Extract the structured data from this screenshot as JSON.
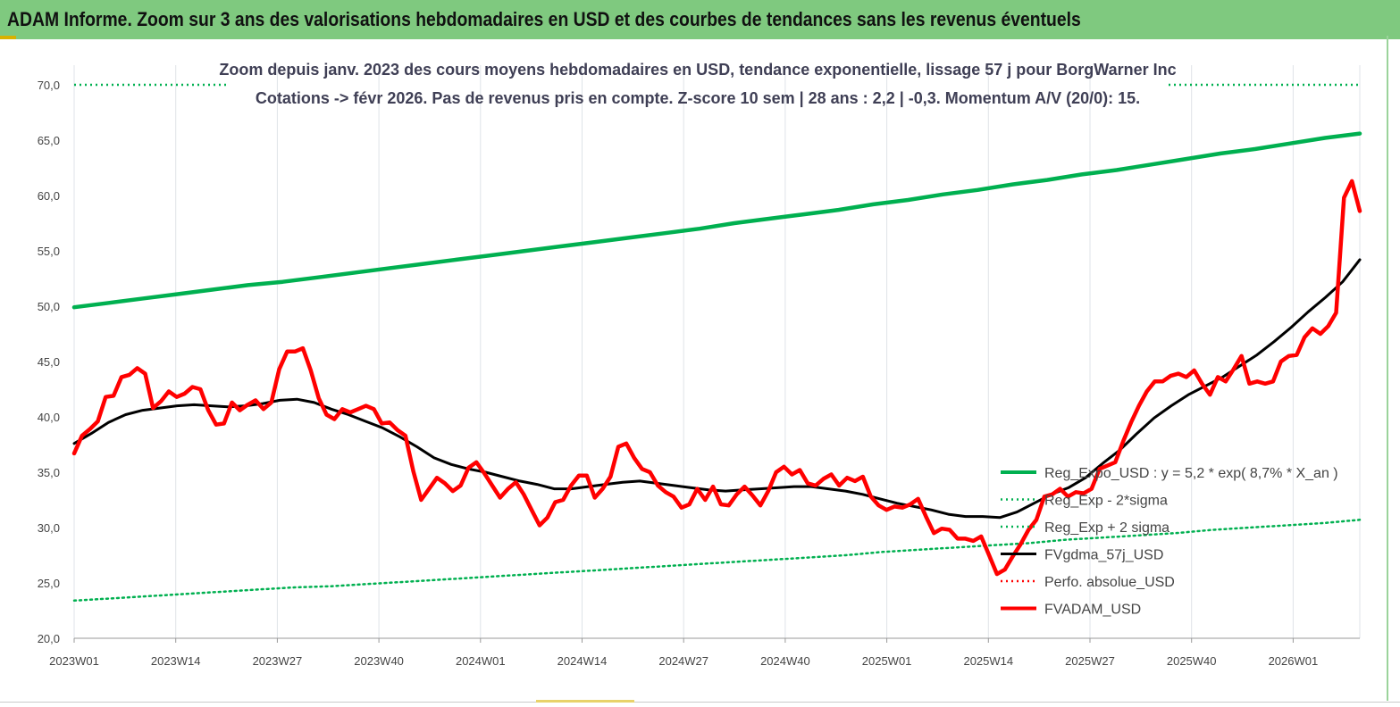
{
  "banner": {
    "title": "ADAM Informe. Zoom sur 3 ans des valorisations hebdomadaires en USD et des courbes de tendances sans les revenus éventuels"
  },
  "colors": {
    "banner_bg": "#7fc97f",
    "reg_expo": "#00b050",
    "fvgdma": "#000000",
    "fvadam": "#ff0000",
    "perfo": "#ff0000"
  },
  "chart_data": {
    "type": "line",
    "title_line1": "Zoom depuis janv. 2023 des cours moyens hebdomadaires en USD, tendance exponentielle, lissage 57 j pour BorgWarner Inc",
    "title_line2": "Cotations -> févr 2026.  Pas de revenus pris en compte. Z-score 10 sem  | 28 ans : 2,2 | -0,3. Momentum A/V (20/0): 15.",
    "ylim": [
      20,
      70
    ],
    "y_ticks": [
      "20,0",
      "25,0",
      "30,0",
      "35,0",
      "40,0",
      "45,0",
      "50,0",
      "55,0",
      "60,0",
      "65,0",
      "70,0"
    ],
    "x_ticks": [
      "2023W01",
      "2023W14",
      "2023W27",
      "2023W40",
      "2024W01",
      "2024W14",
      "2024W27",
      "2024W40",
      "2025W01",
      "2025W14",
      "2025W27",
      "2025W40",
      "2026W01"
    ],
    "grid": "vertical",
    "legend_position": "bottom-right",
    "series": [
      {
        "name": "Reg_Expo_USD : y = 5,2 * exp( 8,7% *  X_an )",
        "style": "solid-thick",
        "color": "#00b050",
        "values": [
          49.9,
          50.3,
          50.7,
          51.1,
          51.5,
          51.9,
          52.2,
          52.6,
          53.0,
          53.4,
          53.8,
          54.2,
          54.6,
          55.0,
          55.4,
          55.8,
          56.2,
          56.6,
          57.0,
          57.5,
          57.9,
          58.3,
          58.7,
          59.2,
          59.6,
          60.1,
          60.5,
          61.0,
          61.4,
          61.9,
          62.3,
          62.8,
          63.3,
          63.8,
          64.2,
          64.7,
          65.2,
          65.6
        ]
      },
      {
        "name": "Reg_Exp - 2*sigma",
        "style": "dotted",
        "color": "#00b050",
        "values": [
          23.4,
          23.6,
          23.8,
          24.0,
          24.2,
          24.4,
          24.6,
          24.7,
          24.9,
          25.1,
          25.3,
          25.5,
          25.7,
          25.9,
          26.1,
          26.3,
          26.5,
          26.7,
          26.9,
          27.1,
          27.3,
          27.5,
          27.8,
          28.0,
          28.2,
          28.4,
          28.6,
          28.9,
          29.1,
          29.3,
          29.5,
          29.8,
          30.0,
          30.2,
          30.4,
          30.7
        ]
      },
      {
        "name": "Reg_Exp + 2 sigma",
        "style": "dotted",
        "color": "#00b050",
        "note_values": "line at 70,0 visible only at chart edges",
        "values": [
          70.0,
          70.0
        ]
      },
      {
        "name": "FVgdma_57j_USD",
        "style": "solid",
        "color": "#000000",
        "values": [
          37.6,
          38.5,
          39.5,
          40.2,
          40.6,
          40.8,
          41.0,
          41.1,
          41.0,
          40.9,
          41.0,
          41.2,
          41.5,
          41.6,
          41.3,
          40.7,
          40.2,
          39.6,
          39.0,
          38.2,
          37.3,
          36.3,
          35.7,
          35.3,
          35.0,
          34.6,
          34.2,
          33.9,
          33.5,
          33.5,
          33.7,
          33.9,
          34.1,
          34.2,
          34.0,
          33.8,
          33.6,
          33.4,
          33.3,
          33.4,
          33.5,
          33.6,
          33.7,
          33.7,
          33.5,
          33.3,
          33.0,
          32.6,
          32.2,
          31.9,
          31.6,
          31.2,
          31.0,
          31.0,
          30.9,
          31.4,
          32.2,
          33.0,
          33.6,
          34.5,
          35.8,
          37.0,
          38.5,
          39.9,
          41.0,
          42.0,
          42.8,
          43.6,
          44.6,
          45.6,
          46.8,
          48.1,
          49.5,
          50.8,
          52.2,
          54.2
        ]
      },
      {
        "name": "Perfo. absolue_USD",
        "style": "dotted",
        "color": "#ff0000",
        "values": []
      },
      {
        "name": "FVADAM_USD",
        "style": "solid-thick",
        "color": "#ff0000",
        "values": [
          36.7,
          38.3,
          38.9,
          39.6,
          41.8,
          41.9,
          43.6,
          43.8,
          44.4,
          43.9,
          40.8,
          41.4,
          42.3,
          41.8,
          42.1,
          42.7,
          42.5,
          40.6,
          39.3,
          39.4,
          41.3,
          40.6,
          41.1,
          41.5,
          40.7,
          41.3,
          44.3,
          45.9,
          45.9,
          46.2,
          44.2,
          41.7,
          40.2,
          39.8,
          40.7,
          40.4,
          40.7,
          41.0,
          40.7,
          39.4,
          39.5,
          38.8,
          38.3,
          35.1,
          32.5,
          33.5,
          34.5,
          34.0,
          33.3,
          33.8,
          35.4,
          35.9,
          34.9,
          33.8,
          32.7,
          33.5,
          34.1,
          33.0,
          31.6,
          30.2,
          30.9,
          32.3,
          32.5,
          33.8,
          34.7,
          34.7,
          32.7,
          33.5,
          34.6,
          37.3,
          37.6,
          36.3,
          35.3,
          35.0,
          33.8,
          33.2,
          32.8,
          31.8,
          32.1,
          33.5,
          32.5,
          33.7,
          32.1,
          32.0,
          33.0,
          33.7,
          32.9,
          32.0,
          33.3,
          35.0,
          35.5,
          34.8,
          35.2,
          34.0,
          33.8,
          34.4,
          34.8,
          33.8,
          34.5,
          34.2,
          34.6,
          32.8,
          32.0,
          31.6,
          31.9,
          31.8,
          32.1,
          32.6,
          31.0,
          29.5,
          29.9,
          29.8,
          29.0,
          29.0,
          28.8,
          29.2,
          27.5,
          25.8,
          26.2,
          27.4,
          28.5,
          29.8,
          30.7,
          32.8,
          33.0,
          33.5,
          32.8,
          33.2,
          33.1,
          33.5,
          35.3,
          35.6,
          35.9,
          37.8,
          39.5,
          41.0,
          42.3,
          43.2,
          43.2,
          43.7,
          43.9,
          43.6,
          44.2,
          43.0,
          42.0,
          43.6,
          43.2,
          44.3,
          45.5,
          43.0,
          43.2,
          43.0,
          43.2,
          45.0,
          45.5,
          45.6,
          47.2,
          48.0,
          47.5,
          48.2,
          49.4,
          59.8,
          61.3,
          58.6
        ]
      }
    ]
  }
}
